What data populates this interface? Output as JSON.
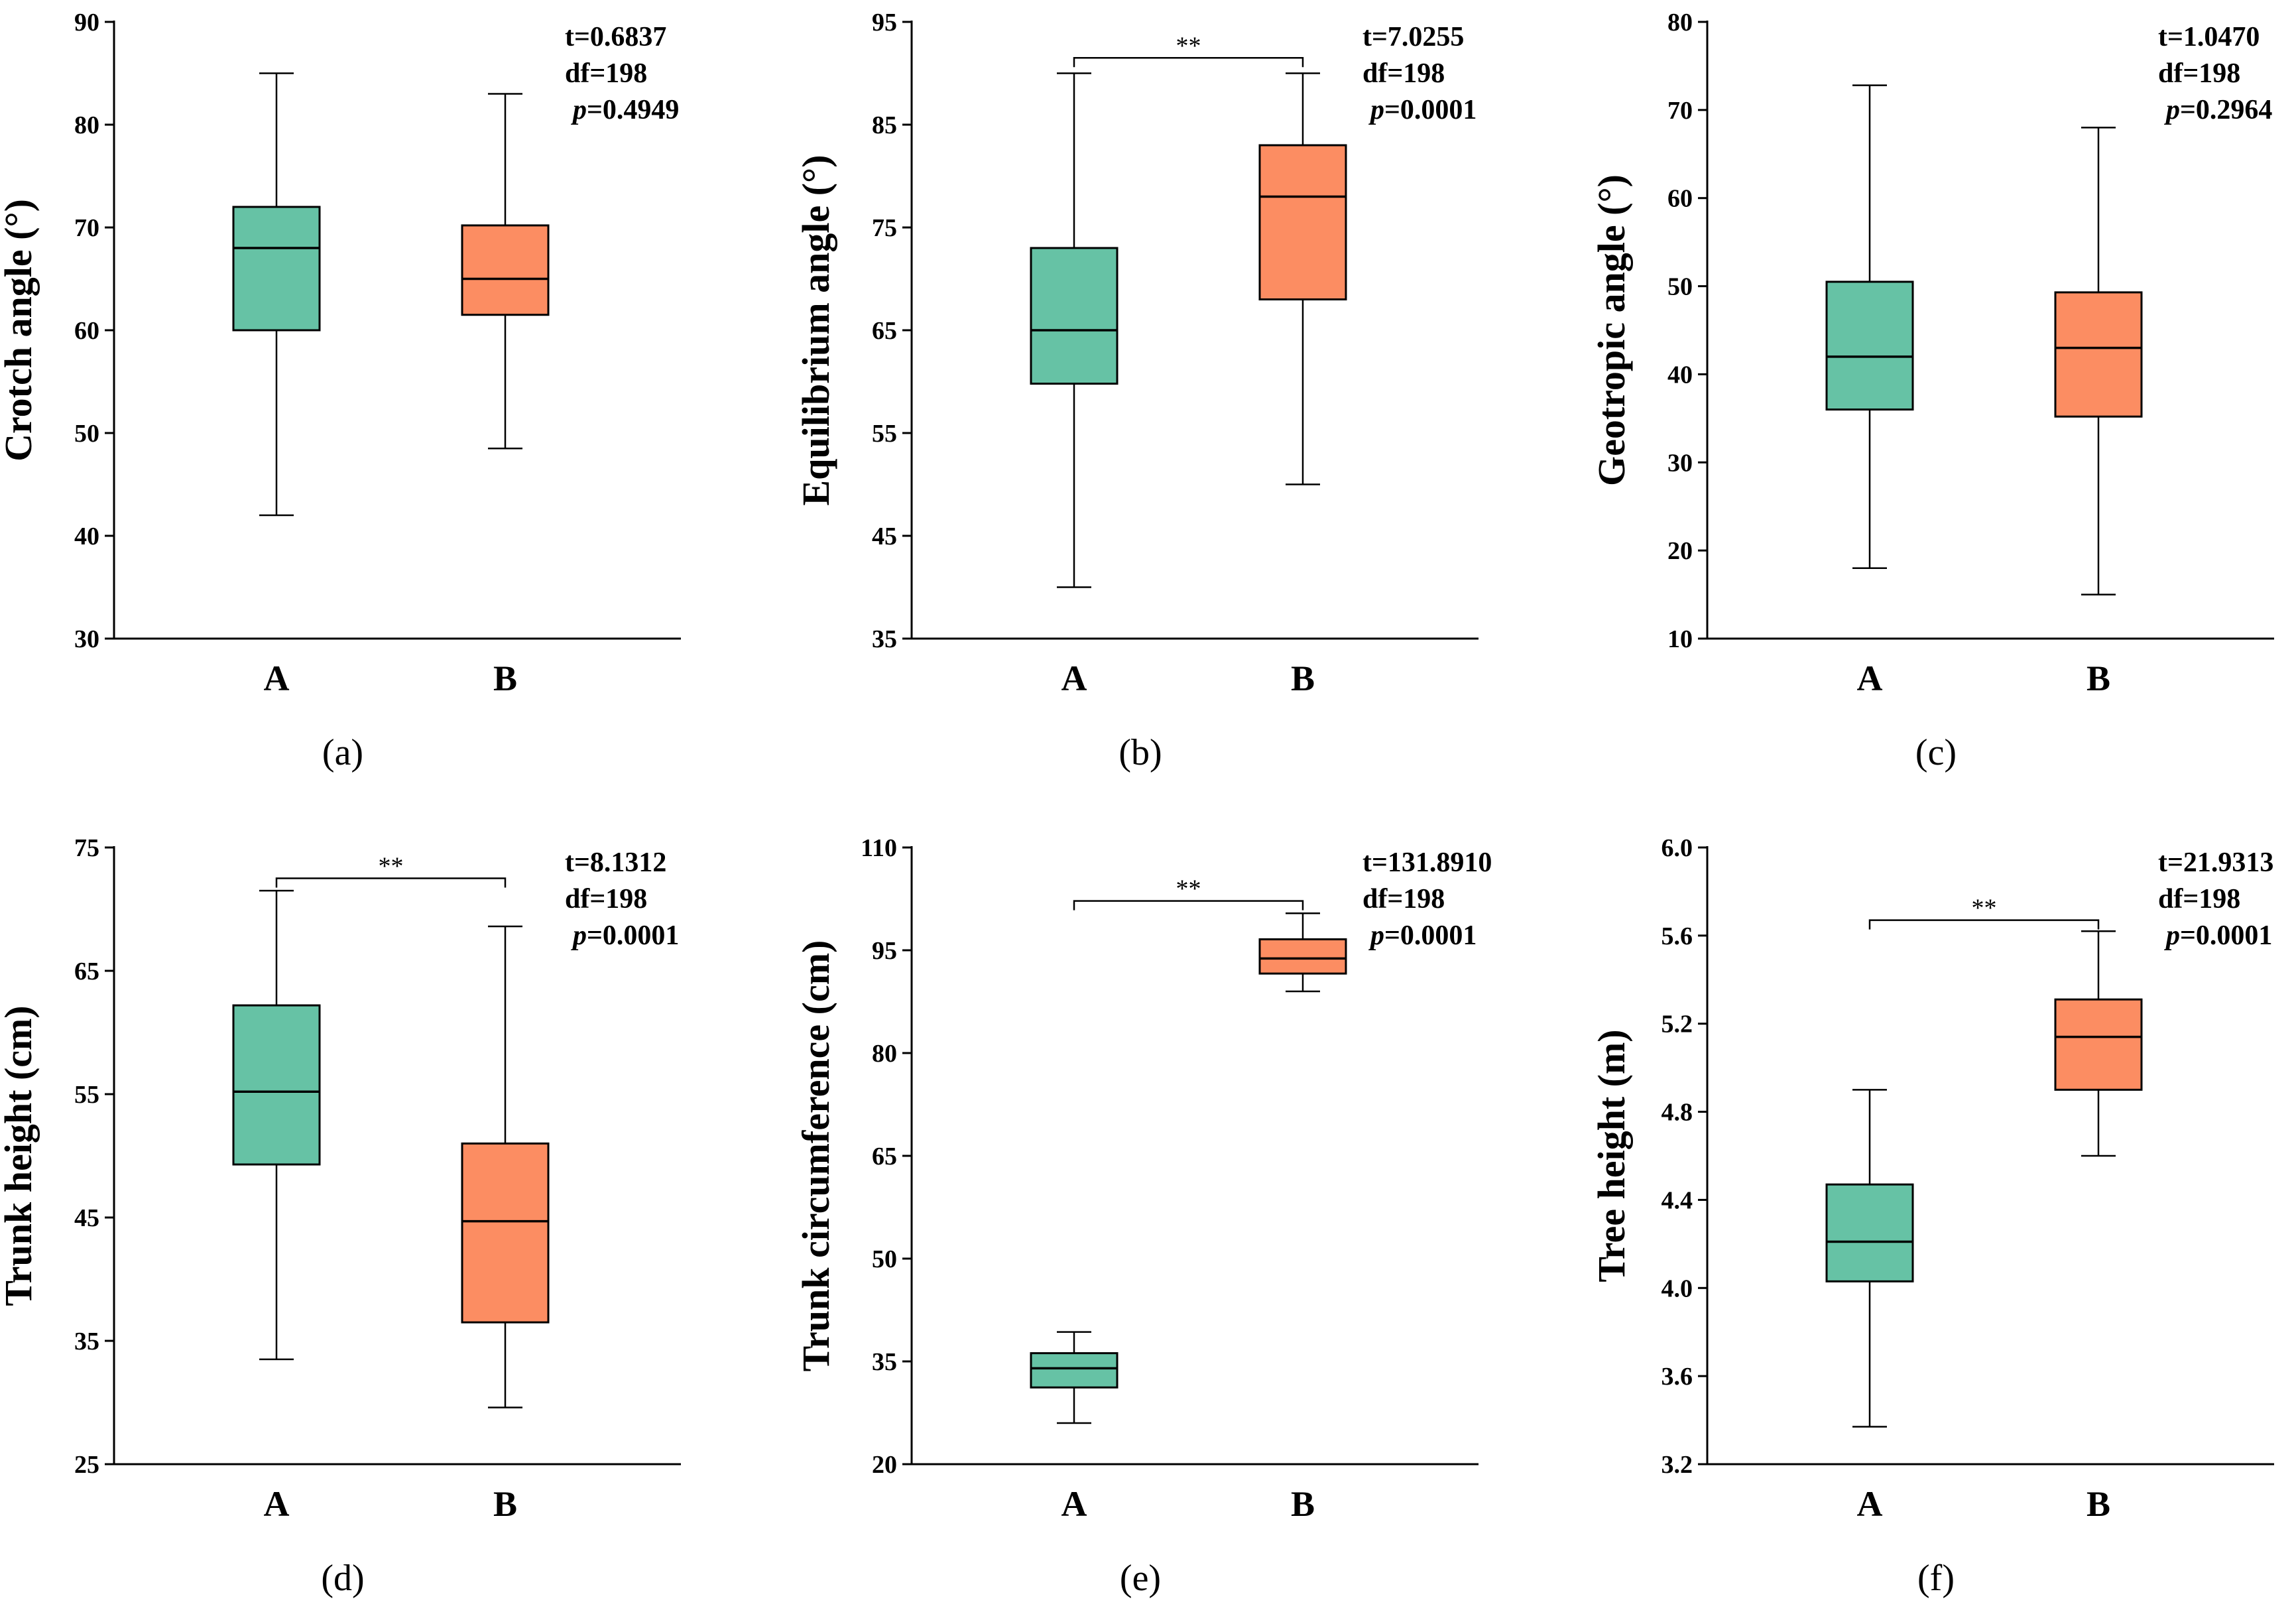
{
  "colors": {
    "A": "#66c2a5",
    "B": "#fc8d62"
  },
  "chart_data": [
    {
      "type": "box",
      "panel": "a",
      "panel_label": "(a)",
      "ylabel": "Crotch angle (°)",
      "ylim": [
        30,
        90
      ],
      "yticks": [
        30,
        40,
        50,
        60,
        70,
        80,
        90
      ],
      "categories": [
        "A",
        "B"
      ],
      "boxes": [
        {
          "name": "A",
          "min": 42,
          "q1": 60,
          "median": 68,
          "q3": 72,
          "max": 85
        },
        {
          "name": "B",
          "min": 48.5,
          "q1": 61.5,
          "median": 65,
          "q3": 70.2,
          "max": 83
        }
      ],
      "stats": {
        "t": "t=0.6837",
        "df": "df=198",
        "p_label": "p",
        "p_value": "=0.4949"
      },
      "significance": null
    },
    {
      "type": "box",
      "panel": "b",
      "panel_label": "(b)",
      "ylabel": "Equilibrium angle (°)",
      "ylim": [
        35,
        95
      ],
      "yticks": [
        35,
        45,
        55,
        65,
        75,
        85,
        95
      ],
      "categories": [
        "A",
        "B"
      ],
      "boxes": [
        {
          "name": "A",
          "min": 40,
          "q1": 59.8,
          "median": 65,
          "q3": 73,
          "max": 90
        },
        {
          "name": "B",
          "min": 50,
          "q1": 68,
          "median": 78,
          "q3": 83,
          "max": 90
        }
      ],
      "stats": {
        "t": "t=7.0255",
        "df": "df=198",
        "p_label": "p",
        "p_value": "=0.0001"
      },
      "significance": {
        "label": "**",
        "y": 91.5
      }
    },
    {
      "type": "box",
      "panel": "c",
      "panel_label": "(c)",
      "ylabel": "Geotropic angle (°)",
      "ylim": [
        10,
        80
      ],
      "yticks": [
        10,
        20,
        30,
        40,
        50,
        60,
        70,
        80
      ],
      "categories": [
        "A",
        "B"
      ],
      "boxes": [
        {
          "name": "A",
          "min": 18,
          "q1": 36,
          "median": 42,
          "q3": 50.5,
          "max": 72.8
        },
        {
          "name": "B",
          "min": 15,
          "q1": 35.2,
          "median": 43,
          "q3": 49.3,
          "max": 68
        }
      ],
      "stats": {
        "t": "t=1.0470",
        "df": "df=198",
        "p_label": "p",
        "p_value": "=0.2964"
      },
      "significance": null
    },
    {
      "type": "box",
      "panel": "d",
      "panel_label": "(d)",
      "ylabel": "Trunk height (cm)",
      "ylim": [
        25,
        75
      ],
      "yticks": [
        25,
        35,
        45,
        55,
        65,
        75
      ],
      "categories": [
        "A",
        "B"
      ],
      "boxes": [
        {
          "name": "A",
          "min": 33.5,
          "q1": 49.3,
          "median": 55.2,
          "q3": 62.2,
          "max": 71.5
        },
        {
          "name": "B",
          "min": 29.6,
          "q1": 36.5,
          "median": 44.7,
          "q3": 51,
          "max": 68.6
        }
      ],
      "stats": {
        "t": "t=8.1312",
        "df": "df=198",
        "p_label": "p",
        "p_value": "=0.0001"
      },
      "significance": {
        "label": "**",
        "y": 72.5
      }
    },
    {
      "type": "box",
      "panel": "e",
      "panel_label": "(e)",
      "ylabel": "Trunk circumference (cm)",
      "ylim": [
        20,
        110
      ],
      "yticks": [
        20,
        35,
        50,
        65,
        80,
        95,
        110
      ],
      "categories": [
        "A",
        "B"
      ],
      "boxes": [
        {
          "name": "A",
          "min": 26,
          "q1": 31.2,
          "median": 34,
          "q3": 36.2,
          "max": 39.3
        },
        {
          "name": "B",
          "min": 89,
          "q1": 91.6,
          "median": 93.8,
          "q3": 96.6,
          "max": 100.4
        }
      ],
      "stats": {
        "t": "t=131.8910",
        "df": "df=198",
        "p_label": "p",
        "p_value": "=0.0001"
      },
      "significance": {
        "label": "**",
        "y": 102.2
      }
    },
    {
      "type": "box",
      "panel": "f",
      "panel_label": "(f)",
      "ylabel": "Tree height (m)",
      "ylim": [
        3.2,
        6.0
      ],
      "yticks": [
        "3.2",
        "3.6",
        "4.0",
        "4.4",
        "4.8",
        "5.2",
        "5.6",
        "6.0"
      ],
      "categories": [
        "A",
        "B"
      ],
      "boxes": [
        {
          "name": "A",
          "min": 3.37,
          "q1": 4.03,
          "median": 4.21,
          "q3": 4.47,
          "max": 4.9
        },
        {
          "name": "B",
          "min": 4.6,
          "q1": 4.9,
          "median": 5.14,
          "q3": 5.31,
          "max": 5.62
        }
      ],
      "stats": {
        "t": "t=21.9313",
        "df": "df=198",
        "p_label": "p",
        "p_value": "=0.0001"
      },
      "significance": {
        "label": "**",
        "y": 5.67
      }
    }
  ]
}
